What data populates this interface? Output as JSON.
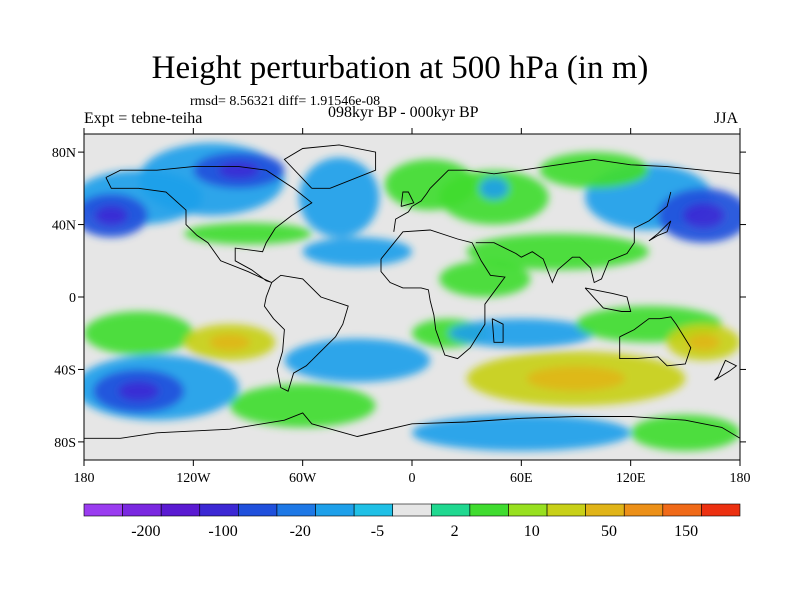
{
  "title": "Height perturbation at 500 hPa (in m)",
  "stats": "rmsd= 8.56321 diff= 1.91546e-08",
  "experiment": "Expt = tebne-teiha",
  "period": "098kyr BP - 000kyr BP",
  "season": "JJA",
  "map": {
    "lat_ticks": [
      {
        "label": "80N",
        "lat": 80
      },
      {
        "label": "40N",
        "lat": 40
      },
      {
        "label": "0",
        "lat": 0
      },
      {
        "label": "40S",
        "lat": -40
      },
      {
        "label": "80S",
        "lat": -80
      }
    ],
    "lon_ticks": [
      {
        "label": "180",
        "lon": -180
      },
      {
        "label": "120W",
        "lon": -120
      },
      {
        "label": "60W",
        "lon": -60
      },
      {
        "label": "0",
        "lon": 0
      },
      {
        "label": "60E",
        "lon": 60
      },
      {
        "label": "120E",
        "lon": 120
      },
      {
        "label": "180",
        "lon": 180
      }
    ],
    "lat_range": [
      -90,
      90
    ],
    "lon_range": [
      -180,
      180
    ]
  },
  "colorbar": {
    "colors": [
      "#9a3cf0",
      "#7a28e0",
      "#5a1ad2",
      "#3c28d4",
      "#2050dc",
      "#1e78e6",
      "#1ea0ea",
      "#20c0e6",
      "#e6e6e6",
      "#20d890",
      "#40dc30",
      "#98e020",
      "#c8d018",
      "#e0b418",
      "#ec9018",
      "#f06a18",
      "#ec3010"
    ],
    "labels": [
      {
        "text": "-200",
        "index": 1
      },
      {
        "text": "-100",
        "index": 3
      },
      {
        "text": "-20",
        "index": 5
      },
      {
        "text": "-5",
        "index": 7
      },
      {
        "text": "2",
        "index": 9
      },
      {
        "text": "10",
        "index": 11
      },
      {
        "text": "50",
        "index": 13
      },
      {
        "text": "150",
        "index": 15
      }
    ]
  },
  "field_blobs": [
    {
      "lon": -150,
      "lat": 55,
      "rx": 35,
      "ry": 15,
      "level": -1
    },
    {
      "lon": -110,
      "lat": 65,
      "rx": 40,
      "ry": 20,
      "level": -1
    },
    {
      "lon": -95,
      "lat": 70,
      "rx": 25,
      "ry": 10,
      "level": -2
    },
    {
      "lon": -165,
      "lat": 45,
      "rx": 20,
      "ry": 12,
      "level": -2
    },
    {
      "lon": -40,
      "lat": 55,
      "rx": 22,
      "ry": 22,
      "level": -1
    },
    {
      "lon": 10,
      "lat": 62,
      "rx": 25,
      "ry": 14,
      "level": 1
    },
    {
      "lon": 45,
      "lat": 55,
      "rx": 30,
      "ry": 15,
      "level": 1
    },
    {
      "lon": 45,
      "lat": 60,
      "rx": 8,
      "ry": 6,
      "level": -1
    },
    {
      "lon": 130,
      "lat": 55,
      "rx": 35,
      "ry": 18,
      "level": -1
    },
    {
      "lon": 160,
      "lat": 45,
      "rx": 25,
      "ry": 15,
      "level": -2
    },
    {
      "lon": 100,
      "lat": 70,
      "rx": 30,
      "ry": 10,
      "level": 1
    },
    {
      "lon": -90,
      "lat": 35,
      "rx": 35,
      "ry": 6,
      "level": 1
    },
    {
      "lon": -30,
      "lat": 25,
      "rx": 30,
      "ry": 8,
      "level": -1
    },
    {
      "lon": 80,
      "lat": 25,
      "rx": 50,
      "ry": 10,
      "level": 1
    },
    {
      "lon": 40,
      "lat": 10,
      "rx": 25,
      "ry": 10,
      "level": 1
    },
    {
      "lon": -150,
      "lat": -20,
      "rx": 30,
      "ry": 12,
      "level": 1
    },
    {
      "lon": -100,
      "lat": -25,
      "rx": 25,
      "ry": 10,
      "level": 2
    },
    {
      "lon": -140,
      "lat": -50,
      "rx": 45,
      "ry": 18,
      "level": -1
    },
    {
      "lon": -150,
      "lat": -52,
      "rx": 25,
      "ry": 12,
      "level": -2
    },
    {
      "lon": -60,
      "lat": -60,
      "rx": 40,
      "ry": 12,
      "level": 1
    },
    {
      "lon": -30,
      "lat": -35,
      "rx": 40,
      "ry": 12,
      "level": -1
    },
    {
      "lon": 20,
      "lat": -20,
      "rx": 20,
      "ry": 8,
      "level": 1
    },
    {
      "lon": 90,
      "lat": -45,
      "rx": 60,
      "ry": 15,
      "level": 2
    },
    {
      "lon": 60,
      "lat": -20,
      "rx": 40,
      "ry": 8,
      "level": -1
    },
    {
      "lon": 130,
      "lat": -15,
      "rx": 40,
      "ry": 10,
      "level": 1
    },
    {
      "lon": 160,
      "lat": -25,
      "rx": 20,
      "ry": 10,
      "level": 2
    },
    {
      "lon": 60,
      "lat": -75,
      "rx": 60,
      "ry": 10,
      "level": -1
    },
    {
      "lon": 150,
      "lat": -75,
      "rx": 30,
      "ry": 10,
      "level": 1
    }
  ]
}
